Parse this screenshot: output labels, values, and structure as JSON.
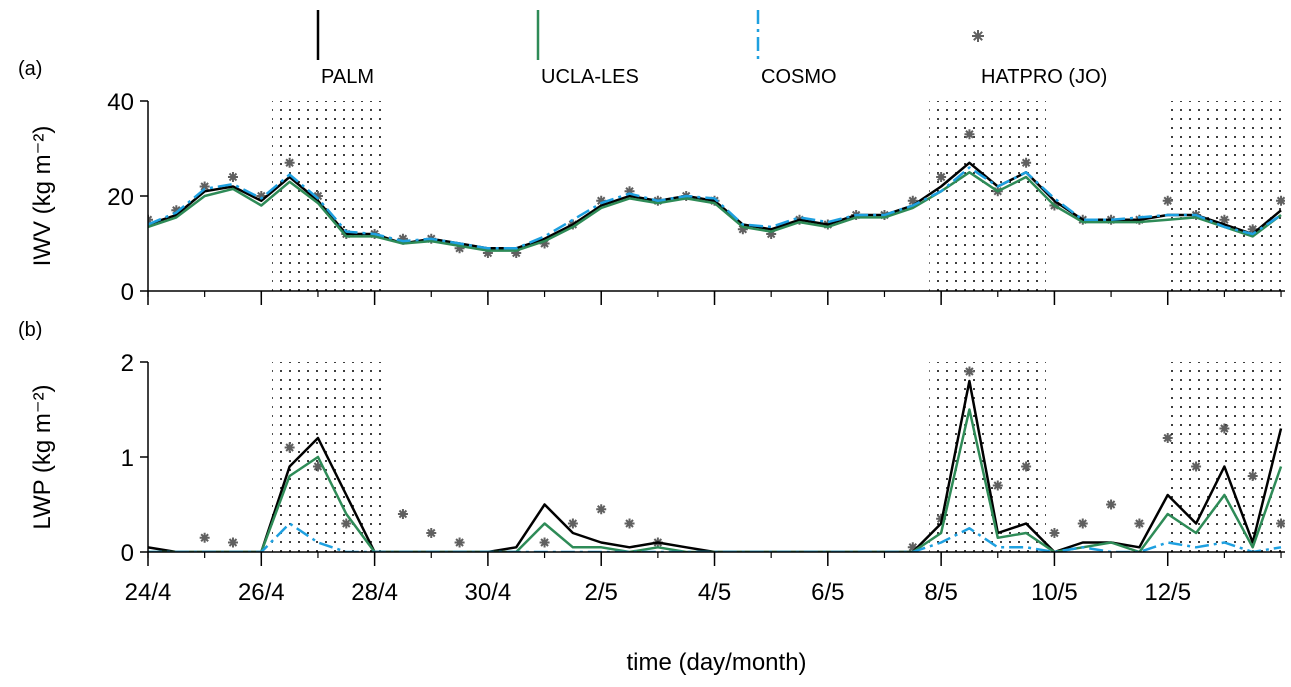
{
  "chart_data": [
    {
      "type": "line",
      "panel_label": "(a)",
      "ylabel": "IWV (kg m⁻²)",
      "x": [
        0,
        0.5,
        1,
        1.5,
        2,
        2.5,
        3,
        3.5,
        4,
        4.5,
        5,
        5.5,
        6,
        6.5,
        7,
        7.5,
        8,
        8.5,
        9,
        9.5,
        10,
        10.5,
        11,
        11.5,
        12,
        12.5,
        13,
        13.5,
        14,
        14.5,
        15,
        15.5,
        16,
        16.5,
        17,
        17.5,
        18,
        18.5,
        19,
        19.5,
        20
      ],
      "xlim": [
        0,
        20.07
      ],
      "ylim": [
        0,
        40
      ],
      "yticks": [
        0,
        20,
        40
      ],
      "shaded_periods": [
        [
          2.19,
          4.17
        ],
        [
          13.79,
          15.85
        ],
        [
          17.95,
          20.07
        ]
      ],
      "series": [
        {
          "name": "PALM",
          "color": "#000000",
          "style": "solid",
          "values": [
            14,
            16,
            21,
            22,
            19,
            24,
            19,
            12,
            12,
            10,
            11,
            10,
            9,
            9,
            11,
            14,
            18,
            20,
            19,
            20,
            19,
            14,
            13,
            15,
            14,
            16,
            16,
            18,
            22,
            27,
            22,
            25,
            19,
            15,
            15,
            15,
            16,
            16,
            14,
            12,
            17
          ]
        },
        {
          "name": "UCLA-LES",
          "color": "#2e8b57",
          "style": "solid",
          "values": [
            13.5,
            15.5,
            20,
            21.5,
            18,
            23,
            18.5,
            11.5,
            11.5,
            10,
            10.5,
            9.5,
            8.5,
            8.5,
            10.5,
            13.5,
            17.5,
            19.5,
            18.5,
            19.5,
            18.5,
            13.5,
            12.5,
            14.5,
            13.5,
            15.5,
            15.5,
            17.5,
            21,
            25,
            21,
            24,
            18,
            14.5,
            14.5,
            14.5,
            15,
            15.5,
            13.5,
            11.5,
            16
          ]
        },
        {
          "name": "COSMO",
          "color": "#1ea0e0",
          "style": "dashed",
          "values": [
            14,
            16.5,
            21.5,
            22.5,
            19.5,
            24.5,
            19.5,
            12.5,
            12,
            10.5,
            11,
            10,
            9,
            9,
            11.5,
            15,
            18.5,
            20.5,
            19,
            20,
            19.5,
            14,
            13.5,
            15.5,
            14.5,
            16,
            16,
            18,
            21,
            26,
            22,
            25,
            19.5,
            15,
            15,
            15.5,
            16,
            16,
            13.5,
            12,
            16
          ]
        },
        {
          "name": "HATPRO (JO)",
          "color": "#606060",
          "style": "star",
          "values": [
            15,
            17,
            22,
            24,
            20,
            27,
            20,
            12,
            12,
            11,
            11,
            9,
            8,
            8,
            10,
            14,
            19,
            21,
            19,
            20,
            19,
            13,
            12,
            15,
            14,
            16,
            16,
            19,
            24,
            33,
            21,
            27,
            18,
            15,
            15,
            15,
            19,
            16,
            15,
            13,
            19
          ]
        }
      ]
    },
    {
      "type": "line",
      "panel_label": "(b)",
      "ylabel": "LWP (kg m⁻²)",
      "xlabel": "time (day/month)",
      "x": [
        0,
        0.5,
        1,
        1.5,
        2,
        2.5,
        3,
        3.5,
        4,
        4.5,
        5,
        5.5,
        6,
        6.5,
        7,
        7.5,
        8,
        8.5,
        9,
        9.5,
        10,
        10.5,
        11,
        11.5,
        12,
        12.5,
        13,
        13.5,
        14,
        14.5,
        15,
        15.5,
        16,
        16.5,
        17,
        17.5,
        18,
        18.5,
        19,
        19.5,
        20
      ],
      "xlim": [
        0,
        20.07
      ],
      "ylim": [
        0,
        2
      ],
      "yticks": [
        0,
        1,
        2
      ],
      "xticks": [
        {
          "value": 0,
          "label": "24/4"
        },
        {
          "value": 2,
          "label": "26/4"
        },
        {
          "value": 4,
          "label": "28/4"
        },
        {
          "value": 6,
          "label": "30/4"
        },
        {
          "value": 8,
          "label": "2/5"
        },
        {
          "value": 10,
          "label": "4/5"
        },
        {
          "value": 12,
          "label": "6/5"
        },
        {
          "value": 14,
          "label": "8/5"
        },
        {
          "value": 16,
          "label": "10/5"
        },
        {
          "value": 18,
          "label": "12/5"
        }
      ],
      "shaded_periods": [
        [
          2.19,
          4.17
        ],
        [
          13.79,
          15.85
        ],
        [
          17.95,
          20.07
        ]
      ],
      "series": [
        {
          "color": "#000000",
          "style": "solid",
          "values": [
            0.05,
            0,
            0,
            0,
            0,
            0.9,
            1.2,
            0.6,
            0,
            0,
            0,
            0,
            0,
            0.05,
            0.5,
            0.2,
            0.1,
            0.05,
            0.1,
            0.05,
            0,
            0,
            0,
            0,
            0,
            0,
            0,
            0,
            0.3,
            1.8,
            0.2,
            0.3,
            0,
            0.1,
            0.1,
            0.05,
            0.6,
            0.3,
            0.9,
            0.1,
            1.3
          ]
        },
        {
          "color": "#2e8b57",
          "style": "solid",
          "values": [
            0,
            0,
            0,
            0,
            0,
            0.8,
            1.0,
            0.4,
            0,
            0,
            0,
            0,
            0,
            0,
            0.3,
            0.05,
            0.05,
            0,
            0.05,
            0,
            0,
            0,
            0,
            0,
            0,
            0,
            0,
            0,
            0.2,
            1.5,
            0.15,
            0.2,
            0,
            0.05,
            0.1,
            0,
            0.4,
            0.2,
            0.6,
            0.05,
            0.9
          ]
        },
        {
          "color": "#1ea0e0",
          "style": "dashed",
          "values": [
            0,
            0,
            0,
            0,
            0,
            0.3,
            0.1,
            0,
            0,
            0,
            0,
            0,
            0,
            0,
            0,
            0,
            0,
            0,
            0,
            0,
            0,
            0,
            0,
            0,
            0,
            0,
            0,
            0,
            0.1,
            0.25,
            0.05,
            0.05,
            0,
            0.05,
            0,
            0,
            0.1,
            0.05,
            0.1,
            0,
            0.05
          ]
        },
        {
          "color": "#606060",
          "style": "star",
          "values": [
            null,
            null,
            0.15,
            0.1,
            null,
            1.1,
            0.9,
            0.3,
            null,
            0.4,
            0.2,
            0.1,
            null,
            null,
            0.1,
            0.3,
            0.45,
            0.3,
            0.1,
            null,
            null,
            null,
            null,
            null,
            null,
            null,
            null,
            0.05,
            0.35,
            1.9,
            0.7,
            0.9,
            0.2,
            0.3,
            0.5,
            0.3,
            1.2,
            0.9,
            1.3,
            0.8,
            0.3
          ]
        }
      ]
    }
  ]
}
